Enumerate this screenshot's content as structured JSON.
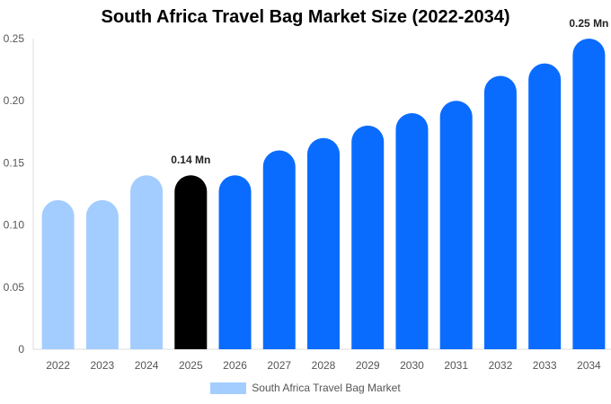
{
  "chart_data": {
    "type": "bar",
    "title": "South Africa Travel Bag Market Size (2022-2034)",
    "xlabel": "",
    "ylabel": "",
    "categories": [
      "2022",
      "2023",
      "2024",
      "2025",
      "2026",
      "2027",
      "2028",
      "2029",
      "2030",
      "2031",
      "2032",
      "2033",
      "2034"
    ],
    "series": [
      {
        "name": "South Africa Travel Bag Market",
        "values": [
          0.12,
          0.12,
          0.14,
          0.14,
          0.14,
          0.16,
          0.17,
          0.18,
          0.19,
          0.2,
          0.22,
          0.23,
          0.25
        ]
      }
    ],
    "ylim": [
      0,
      0.25
    ],
    "yticks": [
      "0",
      "0.05",
      "0.10",
      "0.15",
      "0.20",
      "0.25"
    ],
    "ytick_values": [
      0,
      0.05,
      0.1,
      0.15,
      0.2,
      0.25
    ],
    "data_labels": [
      {
        "category": "2025",
        "text": "0.14 Mn"
      },
      {
        "category": "2034",
        "text": "0.25 Mn"
      }
    ],
    "bar_colors": [
      "#a3cdff",
      "#a3cdff",
      "#a3cdff",
      "#000000",
      "#0a6cff",
      "#0a6cff",
      "#0a6cff",
      "#0a6cff",
      "#0a6cff",
      "#0a6cff",
      "#0a6cff",
      "#0a6cff",
      "#0a6cff"
    ],
    "legend": {
      "label": "South Africa Travel Bag Market",
      "color": "#a3cdff",
      "position": "bottom"
    },
    "grid": false
  }
}
